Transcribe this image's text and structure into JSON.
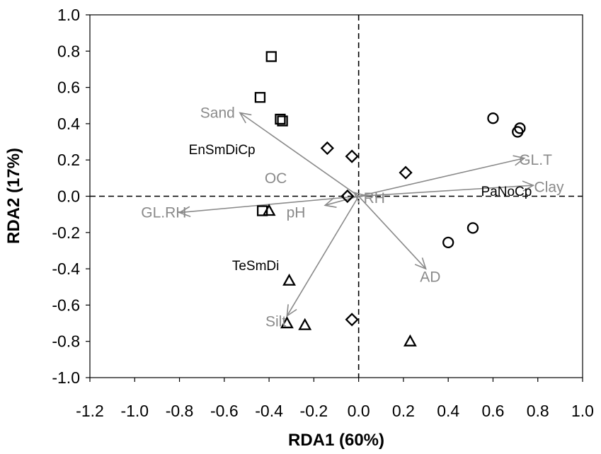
{
  "chart_data": {
    "type": "scatter",
    "xlabel": "RDA1 (60%)",
    "ylabel": "RDA2 (17%)",
    "xlim": [
      -1.2,
      1.0
    ],
    "ylim": [
      -1.0,
      1.0
    ],
    "x_ticks": [
      "-1.2",
      "-1.0",
      "-0.8",
      "-0.6",
      "-0.4",
      "-0.2",
      "0.0",
      "0.2",
      "0.4",
      "0.6",
      "0.8",
      "1.0"
    ],
    "y_ticks": [
      "1.0",
      "0.8",
      "0.6",
      "0.4",
      "0.2",
      "0.0",
      "-0.2",
      "-0.4",
      "-0.6",
      "-0.8",
      "-1.0"
    ],
    "grid": false,
    "reference_lines": {
      "x": 0,
      "y": 0,
      "style": "dashed"
    },
    "colors": {
      "points": "#000000",
      "vectors": "#8a8a8a",
      "vector_labels": "#8a8a8a"
    },
    "series": [
      {
        "marker": "square",
        "points": [
          [
            -0.39,
            0.77
          ],
          [
            -0.44,
            0.545
          ],
          [
            -0.35,
            0.425
          ],
          [
            -0.34,
            0.415
          ],
          [
            -0.43,
            -0.08
          ]
        ]
      },
      {
        "marker": "diamond",
        "points": [
          [
            -0.14,
            0.265
          ],
          [
            -0.03,
            0.22
          ],
          [
            0.21,
            0.13
          ],
          [
            -0.05,
            0.0
          ],
          [
            -0.03,
            -0.68
          ]
        ]
      },
      {
        "marker": "circle",
        "points": [
          [
            0.6,
            0.43
          ],
          [
            0.72,
            0.375
          ],
          [
            0.71,
            0.355
          ],
          [
            0.51,
            -0.175
          ],
          [
            0.4,
            -0.255
          ]
        ]
      },
      {
        "marker": "triangle",
        "points": [
          [
            -0.4,
            -0.08
          ],
          [
            -0.31,
            -0.465
          ],
          [
            -0.32,
            -0.7
          ],
          [
            -0.24,
            -0.71
          ],
          [
            0.23,
            -0.8
          ]
        ]
      }
    ],
    "vectors": [
      {
        "label": "Sand",
        "x": -0.53,
        "y": 0.46
      },
      {
        "label": "GL.RH",
        "x": -0.8,
        "y": -0.09
      },
      {
        "label": "pH",
        "x": -0.15,
        "y": -0.05
      },
      {
        "label": "Silt",
        "x": -0.32,
        "y": -0.66
      },
      {
        "label": "AD",
        "x": 0.3,
        "y": -0.4
      },
      {
        "label": "GL.T",
        "x": 0.74,
        "y": 0.21
      },
      {
        "label": "Clay",
        "x": 0.78,
        "y": 0.06
      },
      {
        "label": "OC",
        "x": -0.02,
        "y": 0.02
      },
      {
        "label": "RH",
        "x": 0.0,
        "y": 0.0
      }
    ],
    "vector_label_positions": [
      {
        "label": "Sand",
        "x": -0.63,
        "y": 0.46
      },
      {
        "label": "GL.RH",
        "x": -0.87,
        "y": -0.09
      },
      {
        "label": "pH",
        "x": -0.28,
        "y": -0.09
      },
      {
        "label": "Silt",
        "x": -0.37,
        "y": -0.69
      },
      {
        "label": "AD",
        "x": 0.32,
        "y": -0.445
      },
      {
        "label": "GL.T",
        "x": 0.79,
        "y": 0.2
      },
      {
        "label": "Clay",
        "x": 0.85,
        "y": 0.05
      },
      {
        "label": "OC",
        "x": -0.37,
        "y": 0.1
      },
      {
        "label": "RH",
        "x": 0.07,
        "y": -0.01
      }
    ],
    "group_labels": [
      {
        "label": "EnSmDiCp",
        "x": -0.61,
        "y": 0.26
      },
      {
        "label": "PaNoCp",
        "x": 0.66,
        "y": 0.03
      },
      {
        "label": "TeSmDi",
        "x": -0.46,
        "y": -0.38
      }
    ]
  }
}
